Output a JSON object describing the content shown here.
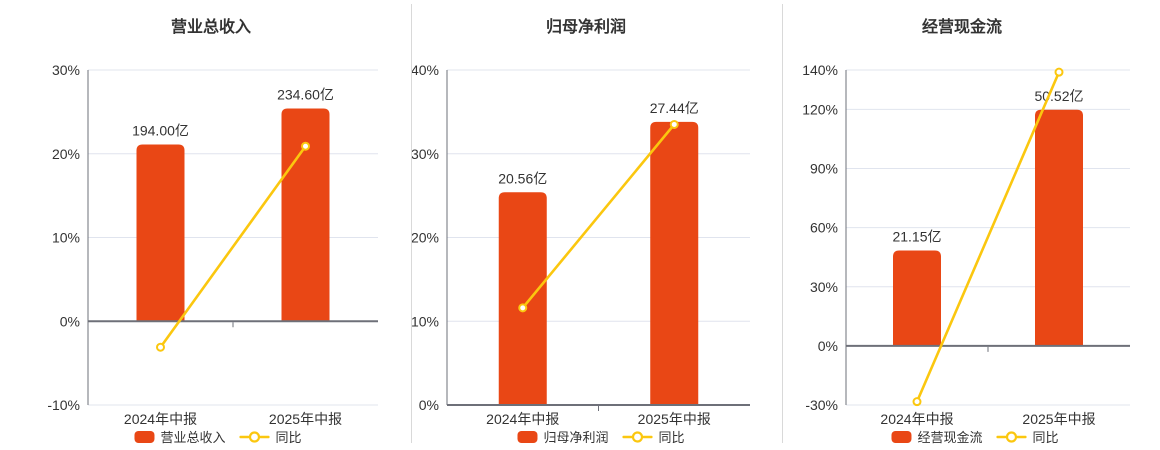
{
  "colors": {
    "bar": "#e94715",
    "line": "#fbc70f",
    "grid": "#e0e4ee",
    "axis": "#6e7079",
    "text": "#333333",
    "divider": "#d9d9d9",
    "background": "#ffffff",
    "marker_fill": "#ffffff"
  },
  "chart_data": [
    {
      "type": "bar",
      "title": "营业总收入",
      "categories": [
        "2024年中报",
        "2025年中报"
      ],
      "series": [
        {
          "name": "营业总收入",
          "type": "bar",
          "unit": "亿",
          "values": [
            194.0,
            234.6
          ],
          "labels": [
            "194.00亿",
            "234.60亿"
          ],
          "color": "#e94715"
        },
        {
          "name": "同比",
          "type": "line",
          "unit": "%",
          "values": [
            -3.1,
            20.9
          ],
          "color": "#fbc70f"
        }
      ],
      "yaxis": {
        "min": -10,
        "max": 30,
        "ticks": [
          -10,
          0,
          10,
          20,
          30
        ],
        "tick_labels": [
          "-10%",
          "0%",
          "10%",
          "20%",
          "30%"
        ],
        "format": "percent"
      },
      "bar_heights_pct": [
        21.1,
        25.4
      ],
      "grid": true,
      "legend_position": "bottom"
    },
    {
      "type": "bar",
      "title": "归母净利润",
      "categories": [
        "2024年中报",
        "2025年中报"
      ],
      "series": [
        {
          "name": "归母净利润",
          "type": "bar",
          "unit": "亿",
          "values": [
            20.56,
            27.44
          ],
          "labels": [
            "20.56亿",
            "27.44亿"
          ],
          "color": "#e94715"
        },
        {
          "name": "同比",
          "type": "line",
          "unit": "%",
          "values": [
            11.6,
            33.5
          ],
          "color": "#fbc70f"
        }
      ],
      "yaxis": {
        "min": 0,
        "max": 40,
        "ticks": [
          0,
          10,
          20,
          30,
          40
        ],
        "tick_labels": [
          "0%",
          "10%",
          "20%",
          "30%",
          "40%"
        ],
        "format": "percent"
      },
      "bar_heights_pct": [
        25.4,
        33.8
      ],
      "grid": true,
      "legend_position": "bottom"
    },
    {
      "type": "bar",
      "title": "经营现金流",
      "categories": [
        "2024年中报",
        "2025年中报"
      ],
      "series": [
        {
          "name": "经营现金流",
          "type": "bar",
          "unit": "亿",
          "values": [
            21.15,
            50.52
          ],
          "labels": [
            "21.15亿",
            "50.52亿"
          ],
          "color": "#e94715"
        },
        {
          "name": "同比",
          "type": "line",
          "unit": "%",
          "values": [
            -28.3,
            138.9
          ],
          "color": "#fbc70f"
        }
      ],
      "yaxis": {
        "min": -30,
        "max": 140,
        "ticks": [
          -30,
          0,
          30,
          60,
          90,
          120,
          140
        ],
        "tick_labels": [
          "-30%",
          "0%",
          "30%",
          "60%",
          "90%",
          "120%",
          "140%"
        ],
        "format": "percent"
      },
      "bar_heights_pct": [
        48.4,
        119.8
      ],
      "grid": true,
      "legend_position": "bottom"
    }
  ]
}
